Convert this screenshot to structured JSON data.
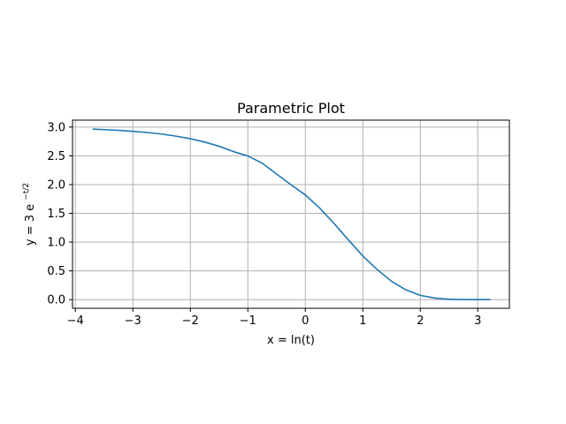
{
  "chart_data": {
    "type": "line",
    "title": "Parametric Plot",
    "xlabel": "x = ln(t)",
    "ylabel": {
      "prefix": "y = 3 e",
      "exponent": "−t/2"
    },
    "xlim": [
      -4.05,
      3.55
    ],
    "ylim": [
      -0.15,
      3.12
    ],
    "xticks": [
      -4,
      -3,
      -2,
      -1,
      0,
      1,
      2,
      3
    ],
    "xtick_labels": [
      "−4",
      "−3",
      "−2",
      "−1",
      "0",
      "1",
      "2",
      "3"
    ],
    "yticks": [
      0.0,
      0.5,
      1.0,
      1.5,
      2.0,
      2.5,
      3.0
    ],
    "ytick_labels": [
      "0.0",
      "0.5",
      "1.0",
      "1.5",
      "2.0",
      "2.5",
      "3.0"
    ],
    "grid": true,
    "color": "#1f77b4",
    "series": [
      {
        "x": [
          -3.7,
          -3.5,
          -3.25,
          -3.0,
          -2.75,
          -2.5,
          -2.25,
          -2.0,
          -1.75,
          -1.5,
          -1.25,
          -1.0,
          -0.75,
          -0.5,
          -0.25,
          0.0,
          0.25,
          0.5,
          0.75,
          1.0,
          1.25,
          1.5,
          1.75,
          2.0,
          2.25,
          2.5,
          2.75,
          3.0,
          3.22
        ],
        "y": [
          2.963,
          2.955,
          2.942,
          2.926,
          2.905,
          2.878,
          2.842,
          2.797,
          2.739,
          2.666,
          2.574,
          2.497,
          2.371,
          2.184,
          1.998,
          1.82,
          1.592,
          1.324,
          1.037,
          0.759,
          0.523,
          0.319,
          0.17,
          0.074,
          0.028,
          0.007,
          0.001,
          0.0,
          0.0
        ]
      }
    ]
  }
}
